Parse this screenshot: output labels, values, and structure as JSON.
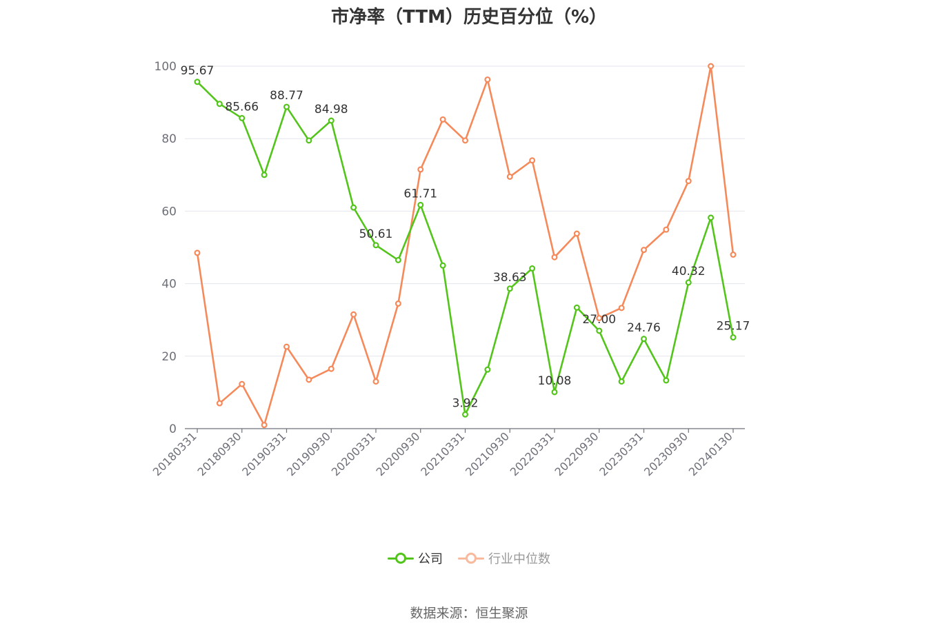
{
  "title": "市净率（TTM）历史百分位（%）",
  "source": "数据来源：恒生聚源",
  "chart_data": {
    "type": "line",
    "x": [
      "20180331",
      "20180630",
      "20180930",
      "20181231",
      "20190331",
      "20190630",
      "20190930",
      "20191231",
      "20200331",
      "20200630",
      "20200930",
      "20201231",
      "20210331",
      "20210630",
      "20210930",
      "20211231",
      "20220331",
      "20220630",
      "20220930",
      "20221231",
      "20230331",
      "20230630",
      "20230930",
      "20231231",
      "20240130"
    ],
    "x_tick_labels": [
      "20180331",
      "20180930",
      "20190331",
      "20190930",
      "20200331",
      "20200930",
      "20210331",
      "20210930",
      "20220331",
      "20220930",
      "20230331",
      "20230930",
      "20240130"
    ],
    "y_ticks": [
      "0",
      "20",
      "40",
      "60",
      "80",
      "100"
    ],
    "ylim": [
      0,
      100
    ],
    "grid": true,
    "legend_position": "bottom",
    "series": [
      {
        "name": "公司",
        "color": "#52c41a",
        "values": [
          95.67,
          89.6,
          85.66,
          70.0,
          88.77,
          79.5,
          84.98,
          61.0,
          50.61,
          46.5,
          61.71,
          45.0,
          3.92,
          16.3,
          38.63,
          44.2,
          10.08,
          33.4,
          27.0,
          13.0,
          24.76,
          13.3,
          40.32,
          58.2,
          25.17
        ],
        "labels": [
          "95.67",
          "",
          "85.66",
          "",
          "88.77",
          "",
          "84.98",
          "",
          "50.61",
          "",
          "61.71",
          "",
          "3.92",
          "",
          "38.63",
          "",
          "10.08",
          "",
          "27.00",
          "",
          "24.76",
          "",
          "40.32",
          "",
          "25.17"
        ]
      },
      {
        "name": "行业中位数",
        "color": "#f5895a",
        "values": [
          48.5,
          7.0,
          12.3,
          1.0,
          22.6,
          13.5,
          16.5,
          31.5,
          13.0,
          34.5,
          71.5,
          85.3,
          79.5,
          96.3,
          69.5,
          74.0,
          47.3,
          53.8,
          30.5,
          33.3,
          49.3,
          54.9,
          68.3,
          100.0,
          48.0
        ]
      }
    ]
  }
}
